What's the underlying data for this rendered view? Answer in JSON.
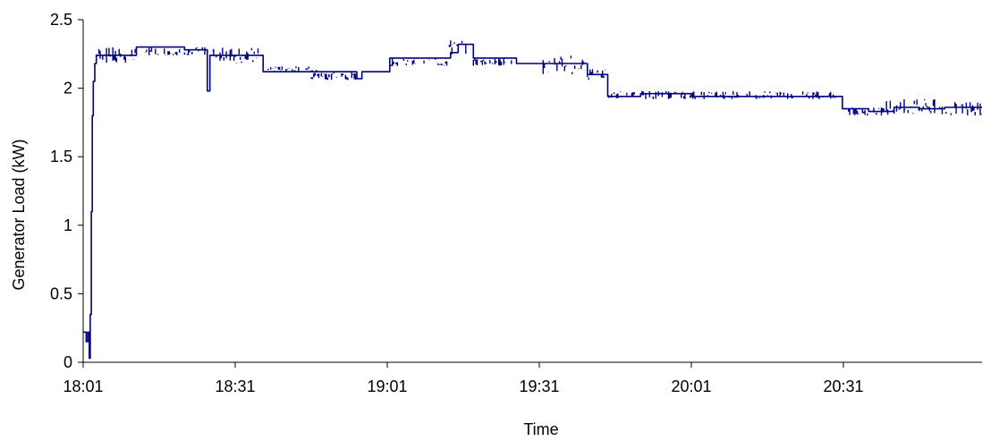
{
  "chart_data": {
    "type": "line",
    "title": "",
    "xlabel": "Time",
    "ylabel": "Generator Load (kW)",
    "xlim_minutes_after_18_01": [
      0,
      178
    ],
    "ylim": [
      0,
      2.5
    ],
    "y_ticks": [
      "0",
      "0.5",
      "1",
      "1.5",
      "2",
      "2.5"
    ],
    "x_ticks": [
      "18:01",
      "18:31",
      "19:01",
      "19:31",
      "20:01",
      "20:31"
    ],
    "grid": false,
    "legend": "none",
    "line_color": "#000080",
    "series": [
      {
        "name": "",
        "points": [
          [
            0,
            0.22
          ],
          [
            0.3,
            0.22
          ],
          [
            0.6,
            0.15
          ],
          [
            0.9,
            0.22
          ],
          [
            1.2,
            0.03
          ],
          [
            1.4,
            0.35
          ],
          [
            1.6,
            1.1
          ],
          [
            1.8,
            1.8
          ],
          [
            2.0,
            2.05
          ],
          [
            2.3,
            2.18
          ],
          [
            2.6,
            2.24
          ],
          [
            4,
            2.24
          ],
          [
            10,
            2.24
          ],
          [
            10.5,
            2.3
          ],
          [
            20,
            2.28
          ],
          [
            24,
            2.28
          ],
          [
            24.5,
            1.98
          ],
          [
            25,
            2.24
          ],
          [
            35,
            2.24
          ],
          [
            35.5,
            2.12
          ],
          [
            50,
            2.12
          ],
          [
            54,
            2.07
          ],
          [
            55,
            2.12
          ],
          [
            60,
            2.12
          ],
          [
            60.5,
            2.22
          ],
          [
            66,
            2.22
          ],
          [
            72,
            2.22
          ],
          [
            72.5,
            2.26
          ],
          [
            74,
            2.32
          ],
          [
            76,
            2.32
          ],
          [
            77,
            2.22
          ],
          [
            85,
            2.22
          ],
          [
            85.5,
            2.18
          ],
          [
            95,
            2.18
          ],
          [
            99,
            2.18
          ],
          [
            99.5,
            2.1
          ],
          [
            103,
            2.1
          ],
          [
            103.5,
            1.94
          ],
          [
            110,
            1.96
          ],
          [
            120,
            1.94
          ],
          [
            132,
            1.94
          ],
          [
            140,
            1.94
          ],
          [
            149.5,
            1.94
          ],
          [
            149.8,
            1.85
          ],
          [
            155,
            1.83
          ],
          [
            160,
            1.86
          ],
          [
            165,
            1.85
          ],
          [
            170,
            1.86
          ],
          [
            178,
            1.86
          ]
        ],
        "noise": [
          {
            "from": 2.6,
            "to": 10,
            "low": 2.18,
            "high": 2.3
          },
          {
            "from": 10,
            "to": 24,
            "low": 2.24,
            "high": 2.3
          },
          {
            "from": 25,
            "to": 35,
            "low": 2.18,
            "high": 2.3
          },
          {
            "from": 35.5,
            "to": 46,
            "low": 2.12,
            "high": 2.16
          },
          {
            "from": 45,
            "to": 54,
            "low": 2.06,
            "high": 2.12
          },
          {
            "from": 60.5,
            "to": 72,
            "low": 2.16,
            "high": 2.22
          },
          {
            "from": 72,
            "to": 76,
            "low": 2.24,
            "high": 2.36
          },
          {
            "from": 77,
            "to": 85,
            "low": 2.16,
            "high": 2.22
          },
          {
            "from": 90,
            "to": 99,
            "low": 2.1,
            "high": 2.24
          },
          {
            "from": 99.5,
            "to": 103,
            "low": 2.06,
            "high": 2.14
          },
          {
            "from": 103.5,
            "to": 149,
            "low": 1.92,
            "high": 1.98
          },
          {
            "from": 150,
            "to": 158,
            "low": 1.8,
            "high": 1.86
          },
          {
            "from": 158,
            "to": 178,
            "low": 1.8,
            "high": 1.92
          }
        ]
      }
    ]
  }
}
